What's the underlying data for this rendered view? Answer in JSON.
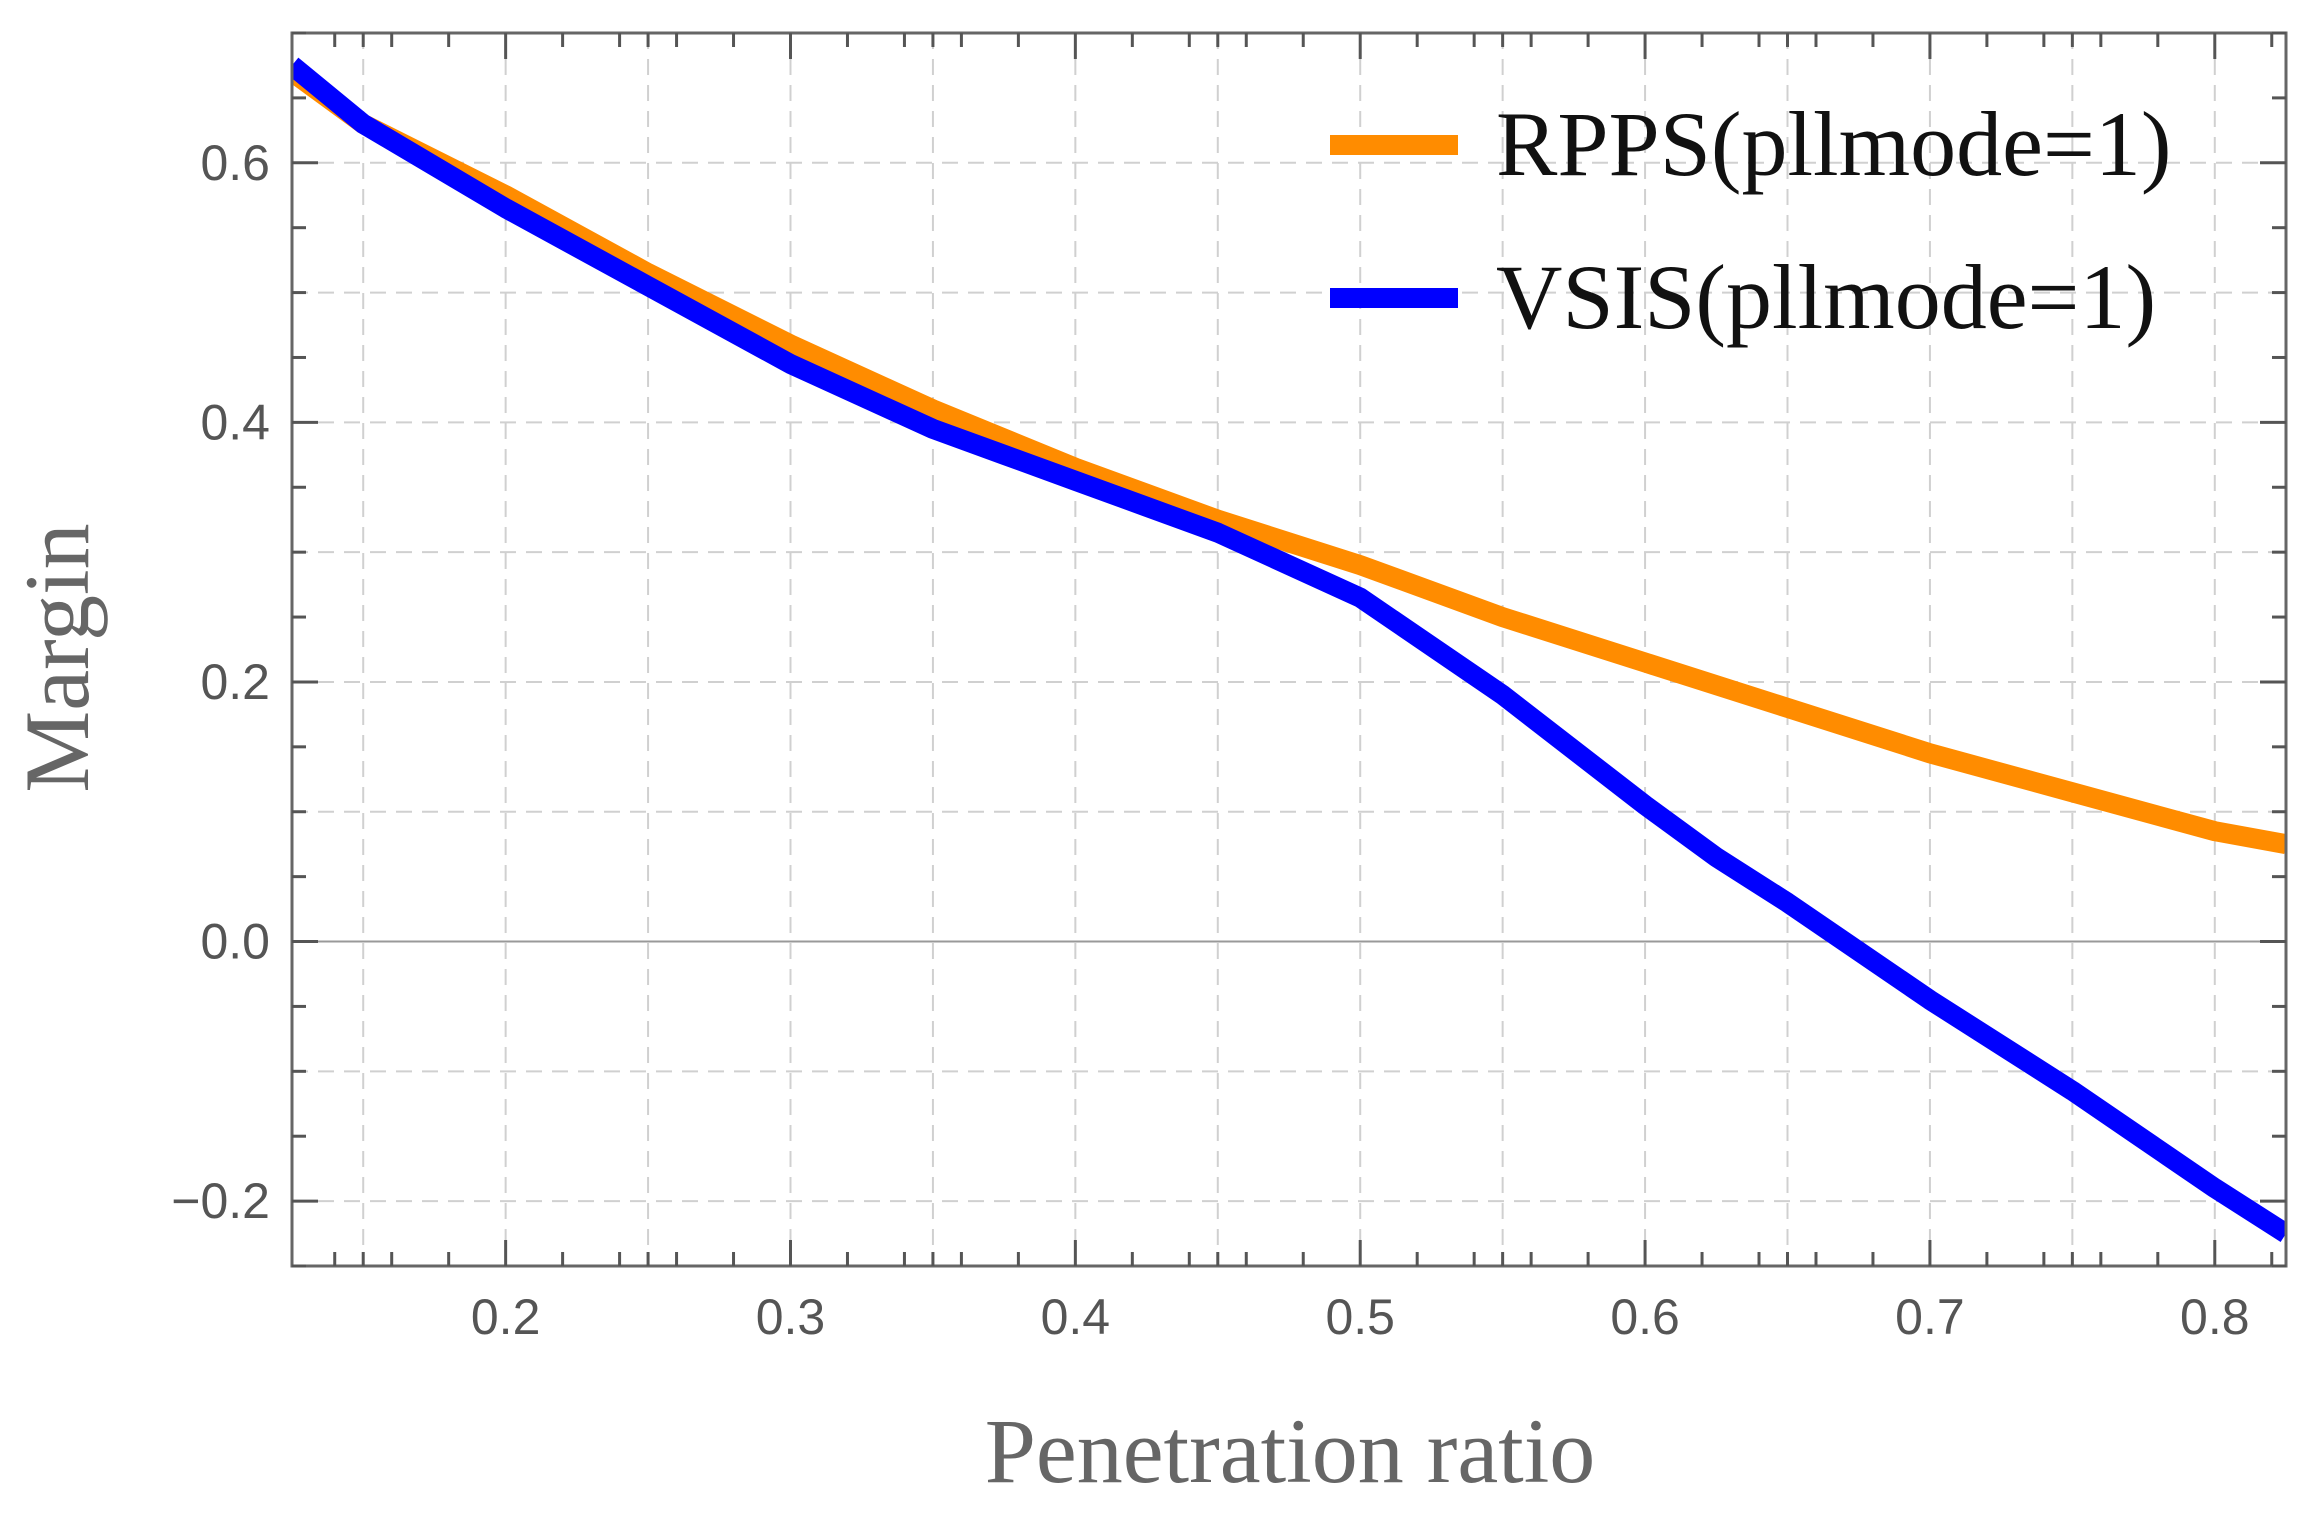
{
  "chart_data": {
    "type": "line",
    "title": "",
    "xlabel": "Penetration ratio",
    "ylabel": "Margin",
    "xlim": [
      0.125,
      0.825
    ],
    "ylim": [
      -0.25,
      0.7
    ],
    "x_ticks": [
      {
        "value": 0.2,
        "label": "0.2"
      },
      {
        "value": 0.3,
        "label": "0.3"
      },
      {
        "value": 0.4,
        "label": "0.4"
      },
      {
        "value": 0.5,
        "label": "0.5"
      },
      {
        "value": 0.6,
        "label": "0.6"
      },
      {
        "value": 0.7,
        "label": "0.7"
      },
      {
        "value": 0.8,
        "label": "0.8"
      }
    ],
    "y_ticks": [
      {
        "value": -0.2,
        "label": "−0.2"
      },
      {
        "value": 0.0,
        "label": "0.0"
      },
      {
        "value": 0.2,
        "label": "0.2"
      },
      {
        "value": 0.4,
        "label": "0.4"
      },
      {
        "value": 0.6,
        "label": "0.6"
      }
    ],
    "grid": true,
    "legend_position": "top-right",
    "series": [
      {
        "name": "RPPS(pllmode=1)",
        "color": "#ff8c00",
        "x": [
          0.125,
          0.15,
          0.2,
          0.25,
          0.3,
          0.35,
          0.4,
          0.45,
          0.5,
          0.55,
          0.6,
          0.65,
          0.7,
          0.75,
          0.8,
          0.825
        ],
        "y": [
          0.67,
          0.63,
          0.575,
          0.515,
          0.46,
          0.41,
          0.365,
          0.325,
          0.29,
          0.25,
          0.215,
          0.18,
          0.145,
          0.115,
          0.085,
          0.075
        ]
      },
      {
        "name": "VSIS(pllmode=1)",
        "color": "#0000ff",
        "x": [
          0.125,
          0.15,
          0.2,
          0.25,
          0.3,
          0.35,
          0.375,
          0.4,
          0.45,
          0.5,
          0.55,
          0.6,
          0.625,
          0.65,
          0.7,
          0.75,
          0.8,
          0.825
        ],
        "y": [
          0.675,
          0.63,
          0.565,
          0.505,
          0.445,
          0.395,
          0.375,
          0.355,
          0.315,
          0.265,
          0.19,
          0.105,
          0.065,
          0.03,
          -0.045,
          -0.115,
          -0.19,
          -0.225
        ]
      }
    ]
  }
}
